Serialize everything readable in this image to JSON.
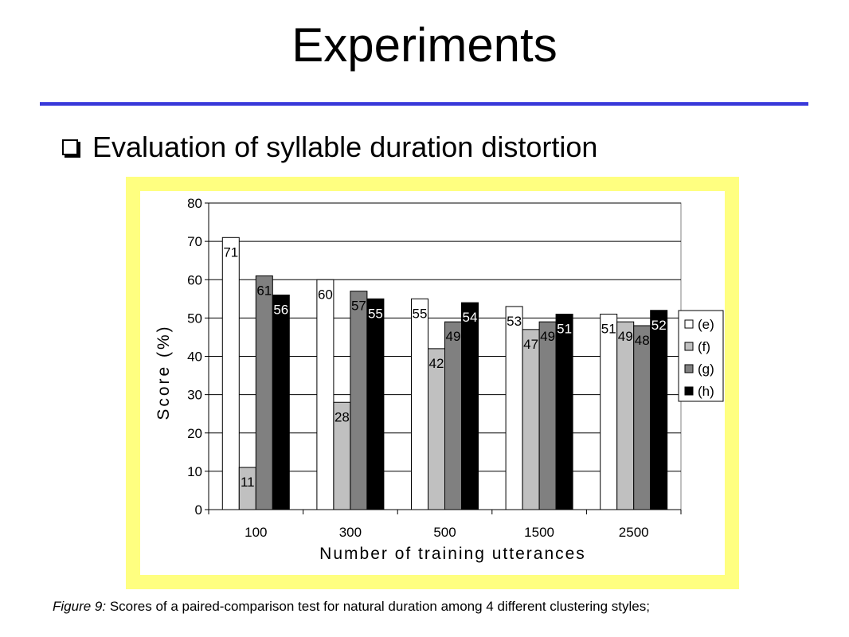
{
  "slide": {
    "title": "Experiments",
    "bullet": "Evaluation of syllable duration distortion",
    "caption_label": "Figure 9:",
    "caption_text": " Scores of a paired-comparison test for natural duration among 4 different clustering styles;"
  },
  "chart_data": {
    "type": "bar",
    "categories": [
      "100",
      "300",
      "500",
      "1500",
      "2500"
    ],
    "series": [
      {
        "name": "(e)",
        "values": [
          71,
          60,
          55,
          53,
          51
        ],
        "color": "#ffffff"
      },
      {
        "name": "(f)",
        "values": [
          11,
          28,
          42,
          47,
          49
        ],
        "color": "#c0c0c0"
      },
      {
        "name": "(g)",
        "values": [
          61,
          57,
          49,
          49,
          48
        ],
        "color": "#808080"
      },
      {
        "name": "(h)",
        "values": [
          56,
          55,
          54,
          51,
          52
        ],
        "color": "#000000"
      }
    ],
    "xlabel": "Number of training utterances",
    "ylabel": "Score (%)",
    "ylim": [
      0,
      80
    ],
    "yticks": [
      0,
      10,
      20,
      30,
      40,
      50,
      60,
      70,
      80
    ],
    "grid": true,
    "legend": "right",
    "plot_background": "#ffffff"
  }
}
